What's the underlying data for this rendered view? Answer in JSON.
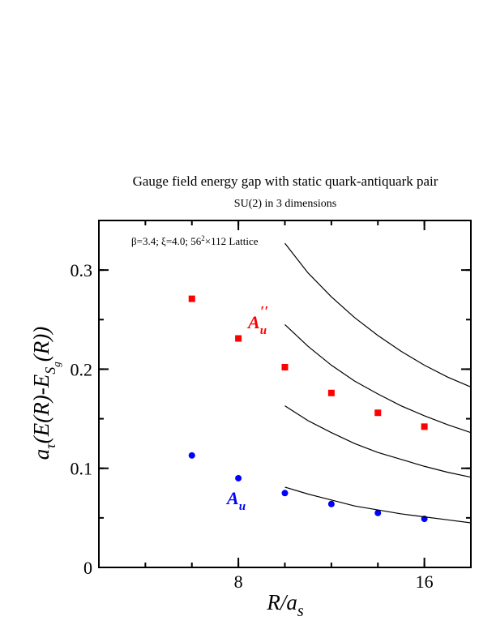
{
  "chart_data": {
    "type": "scatter",
    "title": "Gauge field energy gap with static quark-antiquark pair",
    "subtitle": "SU(2) in 3 dimensions",
    "x_label": {
      "main": "R/a",
      "sub": "s"
    },
    "y_label": {
      "parts": [
        "a",
        "τ",
        "(E(R)-E",
        "S",
        "g",
        "(R))"
      ]
    },
    "annotations": [
      {
        "parts": [
          "β=3.4;  ξ=4.0; 56",
          "2",
          "×112 Lattice"
        ],
        "color": "#000000"
      },
      {
        "text": "A",
        "sub": "u",
        "sup": "′′",
        "color": "#ff0000"
      },
      {
        "text": "A",
        "sub": "u",
        "color": "#0000ff"
      }
    ],
    "xlim": [
      2,
      18
    ],
    "ylim": [
      0,
      0.35
    ],
    "xticks": [
      8,
      16
    ],
    "yticks": [
      0,
      0.1,
      0.2,
      0.3
    ],
    "x_minor_step": 2,
    "y_minor_step": 0.05,
    "series": [
      {
        "x": [
          6,
          8,
          10,
          12,
          14,
          16
        ],
        "values": [
          0.271,
          0.231,
          0.202,
          0.176,
          0.156,
          0.142
        ],
        "color": "#ff0000",
        "marker": "square"
      },
      {
        "x": [
          6,
          8,
          10,
          12,
          14,
          16
        ],
        "values": [
          0.113,
          0.09,
          0.075,
          0.064,
          0.055,
          0.049
        ],
        "color": "#0000ff",
        "marker": "circle"
      },
      {
        "x": [
          10,
          11,
          12,
          13,
          14,
          15,
          16,
          17,
          18
        ],
        "values": [
          0.081,
          0.074,
          0.068,
          0.062,
          0.058,
          0.054,
          0.051,
          0.048,
          0.045
        ],
        "color": "#000000",
        "marker": "line"
      },
      {
        "x": [
          10,
          11,
          12,
          13,
          14,
          15,
          16,
          17,
          18
        ],
        "values": [
          0.163,
          0.148,
          0.136,
          0.125,
          0.116,
          0.109,
          0.102,
          0.096,
          0.091
        ],
        "color": "#000000",
        "marker": "line"
      },
      {
        "x": [
          10,
          11,
          12,
          13,
          14,
          15,
          16,
          17,
          18
        ],
        "values": [
          0.245,
          0.223,
          0.204,
          0.188,
          0.175,
          0.163,
          0.153,
          0.144,
          0.136
        ],
        "color": "#000000",
        "marker": "line"
      },
      {
        "x": [
          10,
          11,
          12,
          13,
          14,
          15,
          16,
          17,
          18
        ],
        "values": [
          0.327,
          0.297,
          0.273,
          0.252,
          0.234,
          0.218,
          0.204,
          0.192,
          0.182
        ],
        "color": "#000000",
        "marker": "line"
      }
    ]
  }
}
